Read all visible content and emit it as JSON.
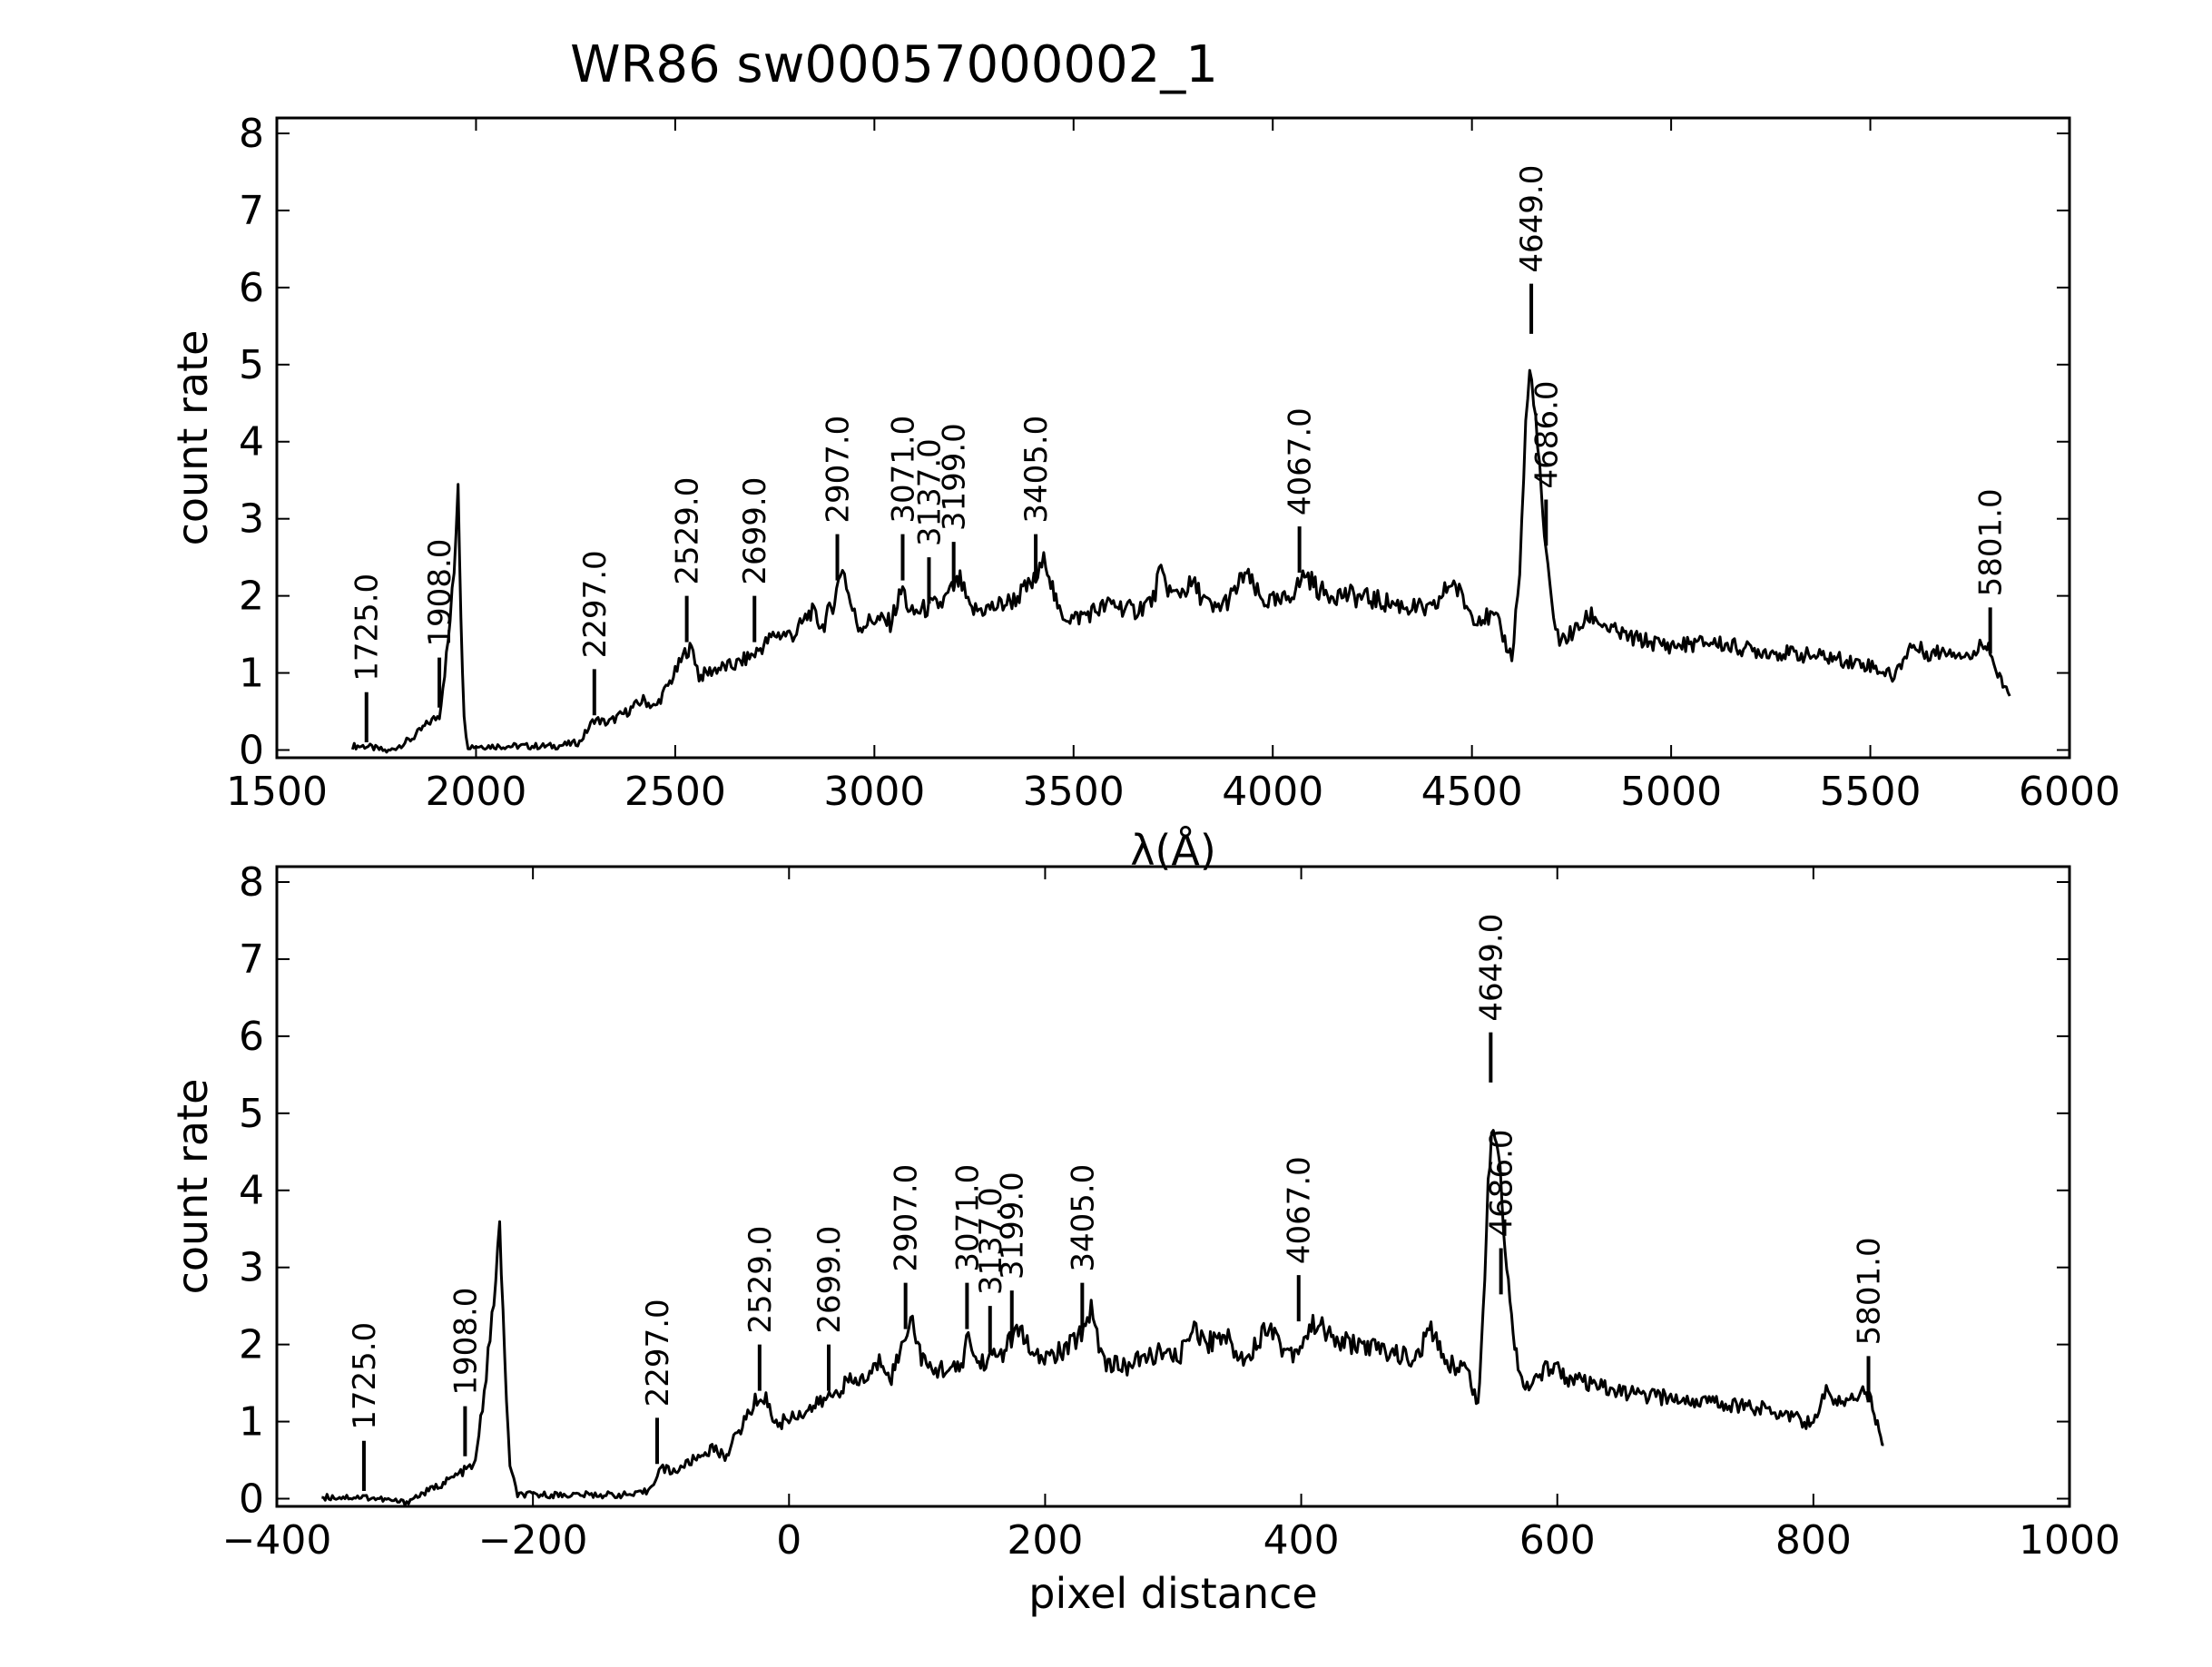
{
  "figure": {
    "title": "WR86  sw00057000002_1"
  },
  "chart_data": [
    {
      "type": "line",
      "xlabel": "λ(Å)",
      "ylabel": "count rate",
      "xlim": [
        1500,
        6000
      ],
      "ylim": [
        -0.1,
        8.2
      ],
      "xticks": [
        1500,
        2000,
        2500,
        3000,
        3500,
        4000,
        4500,
        5000,
        5500,
        6000
      ],
      "xtick_labels": [
        "1500",
        "2000",
        "2500",
        "3000",
        "3500",
        "4000",
        "4500",
        "5000",
        "5500",
        "6000"
      ],
      "yticks": [
        0,
        1,
        2,
        3,
        4,
        5,
        6,
        7,
        8
      ],
      "ytick_labels": [
        "0",
        "1",
        "2",
        "3",
        "4",
        "5",
        "6",
        "7",
        "8"
      ],
      "grid": false,
      "series": [
        {
          "x": [
            1690,
            1725,
            1780,
            1840,
            1880,
            1908,
            1930,
            1945,
            1955,
            1962,
            1970,
            1980,
            1995,
            2050,
            2100,
            2200,
            2260,
            2297,
            2330,
            2380,
            2420,
            2450,
            2500,
            2529,
            2545,
            2560,
            2600,
            2650,
            2700,
            2750,
            2800,
            2840,
            2870,
            2900,
            2920,
            2940,
            2960,
            3000,
            3040,
            3071,
            3090,
            3110,
            3137,
            3170,
            3199,
            3215,
            3240,
            3300,
            3350,
            3405,
            3430,
            3460,
            3500,
            3550,
            3600,
            3650,
            3700,
            3715,
            3750,
            3800,
            3850,
            3900,
            3930,
            3970,
            4020,
            4067,
            4080,
            4120,
            4200,
            4300,
            4400,
            4450,
            4500,
            4560,
            4600,
            4620,
            4635,
            4645,
            4655,
            4670,
            4686,
            4700,
            4720,
            4760,
            4800,
            4850,
            4900,
            5000,
            5100,
            5200,
            5300,
            5400,
            5500,
            5560,
            5600,
            5650,
            5700,
            5760,
            5780,
            5801,
            5820,
            5850
          ],
          "y": [
            0.05,
            0.05,
            -0.02,
            0.15,
            0.35,
            0.45,
            1.4,
            2.3,
            3.5,
            1.8,
            0.4,
            0.05,
            0.05,
            0.05,
            0.05,
            0.05,
            0.1,
            0.4,
            0.35,
            0.5,
            0.65,
            0.55,
            1.0,
            1.3,
            1.3,
            0.95,
            1.05,
            1.1,
            1.25,
            1.5,
            1.5,
            1.8,
            1.6,
            1.95,
            2.4,
            1.9,
            1.6,
            1.7,
            1.65,
            2.1,
            1.75,
            1.8,
            1.85,
            1.9,
            2.1,
            2.2,
            1.8,
            1.85,
            1.95,
            2.2,
            2.5,
            1.8,
            1.7,
            1.8,
            1.9,
            1.8,
            1.95,
            2.3,
            2.0,
            2.15,
            1.8,
            2.0,
            2.3,
            1.95,
            1.9,
            2.15,
            2.3,
            2.05,
            2.0,
            1.9,
            1.8,
            2.2,
            1.75,
            1.7,
            1.2,
            2.3,
            4.2,
            4.9,
            4.6,
            3.6,
            2.5,
            1.9,
            1.4,
            1.55,
            1.75,
            1.55,
            1.45,
            1.35,
            1.4,
            1.3,
            1.25,
            1.2,
            1.1,
            0.95,
            1.35,
            1.25,
            1.3,
            1.2,
            1.45,
            1.3,
            0.95,
            0.7
          ]
        }
      ],
      "line_marks": [
        {
          "label": "1725.0",
          "x": 1725,
          "y_bottom": 0.1,
          "y_top": 0.75
        },
        {
          "label": "1908.0",
          "x": 1908,
          "y_bottom": 0.55,
          "y_top": 1.2
        },
        {
          "label": "2297.0",
          "x": 2297,
          "y_bottom": 0.45,
          "y_top": 1.05
        },
        {
          "label": "2529.0",
          "x": 2529,
          "y_bottom": 1.4,
          "y_top": 2.0
        },
        {
          "label": "2699.0",
          "x": 2699,
          "y_bottom": 1.4,
          "y_top": 2.0
        },
        {
          "label": "2907.0",
          "x": 2907,
          "y_bottom": 2.2,
          "y_top": 2.8
        },
        {
          "label": "3071.0",
          "x": 3071,
          "y_bottom": 2.2,
          "y_top": 2.8
        },
        {
          "label": "3137.0",
          "x": 3137,
          "y_bottom": 1.9,
          "y_top": 2.5
        },
        {
          "label": "3199.0",
          "x": 3199,
          "y_bottom": 2.1,
          "y_top": 2.7
        },
        {
          "label": "3405.0",
          "x": 3405,
          "y_bottom": 2.2,
          "y_top": 2.8
        },
        {
          "label": "4067.0",
          "x": 4067,
          "y_bottom": 2.3,
          "y_top": 2.9
        },
        {
          "label": "4649.0",
          "x": 4649,
          "y_bottom": 5.4,
          "y_top": 6.05
        },
        {
          "label": "4686.0",
          "x": 4686,
          "y_bottom": 2.65,
          "y_top": 3.25
        },
        {
          "label": "5801.0",
          "x": 5801,
          "y_bottom": 1.25,
          "y_top": 1.85
        }
      ]
    },
    {
      "type": "line",
      "xlabel": "pixel distance",
      "ylabel": "count rate",
      "xlim": [
        -400,
        1000
      ],
      "ylim": [
        -0.1,
        8.2
      ],
      "xticks": [
        -400,
        -200,
        0,
        200,
        400,
        600,
        800,
        1000
      ],
      "xtick_labels": [
        "−400",
        "−200",
        "0",
        "200",
        "400",
        "600",
        "800",
        "1000"
      ],
      "yticks": [
        0,
        1,
        2,
        3,
        4,
        5,
        6,
        7,
        8
      ],
      "ytick_labels": [
        "0",
        "1",
        "2",
        "3",
        "4",
        "5",
        "6",
        "7",
        "8"
      ],
      "grid": false,
      "series": [
        {
          "x": [
            -365,
            -330,
            -300,
            -270,
            -255,
            -245,
            -238,
            -232,
            -226,
            -222,
            -218,
            -212,
            -205,
            -180,
            -150,
            -120,
            -110,
            -100,
            -90,
            -75,
            -60,
            -50,
            -35,
            -25,
            -18,
            -10,
            0,
            15,
            30,
            45,
            60,
            72,
            80,
            88,
            95,
            102,
            110,
            122,
            133,
            140,
            147,
            155,
            160,
            167,
            175,
            182,
            190,
            205,
            218,
            230,
            236,
            245,
            260,
            275,
            290,
            300,
            310,
            315,
            325,
            340,
            352,
            365,
            375,
            385,
            395,
            405,
            412,
            425,
            445,
            470,
            490,
            500,
            515,
            530,
            538,
            542,
            546,
            550,
            554,
            558,
            563,
            568,
            575,
            585,
            595,
            610,
            630,
            660,
            690,
            720,
            750,
            780,
            800,
            810,
            820,
            830,
            840,
            845,
            850,
            855
          ],
          "y": [
            0.02,
            0.02,
            -0.05,
            0.2,
            0.35,
            0.45,
            1.4,
            2.3,
            3.5,
            1.8,
            0.4,
            0.05,
            0.05,
            0.05,
            0.05,
            0.05,
            0.1,
            0.4,
            0.35,
            0.5,
            0.65,
            0.55,
            1.0,
            1.3,
            1.3,
            0.95,
            1.05,
            1.15,
            1.3,
            1.5,
            1.55,
            1.8,
            1.6,
            1.95,
            2.4,
            1.9,
            1.65,
            1.7,
            1.65,
            2.1,
            1.75,
            1.8,
            1.85,
            1.9,
            2.1,
            2.2,
            1.8,
            1.85,
            1.95,
            2.2,
            2.5,
            1.8,
            1.7,
            1.8,
            1.9,
            1.8,
            1.95,
            2.3,
            2.0,
            2.15,
            1.8,
            2.0,
            2.3,
            1.95,
            1.9,
            2.15,
            2.3,
            2.05,
            2.0,
            1.9,
            1.8,
            2.2,
            1.75,
            1.7,
            1.2,
            2.3,
            4.2,
            4.9,
            4.6,
            3.6,
            2.5,
            1.9,
            1.4,
            1.55,
            1.75,
            1.55,
            1.45,
            1.35,
            1.3,
            1.25,
            1.2,
            1.1,
            0.95,
            1.4,
            1.25,
            1.3,
            1.45,
            1.3,
            0.95,
            0.7
          ]
        }
      ],
      "line_marks": [
        {
          "label": "1725.0",
          "x": -332,
          "y_bottom": 0.1,
          "y_top": 0.75
        },
        {
          "label": "1908.0",
          "x": -253,
          "y_bottom": 0.55,
          "y_top": 1.2
        },
        {
          "label": "2297.0",
          "x": -103,
          "y_bottom": 0.45,
          "y_top": 1.05
        },
        {
          "label": "2529.0",
          "x": -23,
          "y_bottom": 1.4,
          "y_top": 2.0
        },
        {
          "label": "2699.0",
          "x": 31,
          "y_bottom": 1.4,
          "y_top": 2.0
        },
        {
          "label": "2907.0",
          "x": 91,
          "y_bottom": 2.2,
          "y_top": 2.8
        },
        {
          "label": "3071.0",
          "x": 139,
          "y_bottom": 2.2,
          "y_top": 2.8
        },
        {
          "label": "3137.0",
          "x": 157,
          "y_bottom": 1.9,
          "y_top": 2.5
        },
        {
          "label": "3199.0",
          "x": 174,
          "y_bottom": 2.1,
          "y_top": 2.7
        },
        {
          "label": "3405.0",
          "x": 229,
          "y_bottom": 2.2,
          "y_top": 2.8
        },
        {
          "label": "4067.0",
          "x": 398,
          "y_bottom": 2.3,
          "y_top": 2.9
        },
        {
          "label": "4649.0",
          "x": 548,
          "y_bottom": 5.4,
          "y_top": 6.05
        },
        {
          "label": "4686.0",
          "x": 556,
          "y_bottom": 2.65,
          "y_top": 3.25
        },
        {
          "label": "5801.0",
          "x": 843,
          "y_bottom": 1.25,
          "y_top": 1.85
        }
      ]
    }
  ]
}
